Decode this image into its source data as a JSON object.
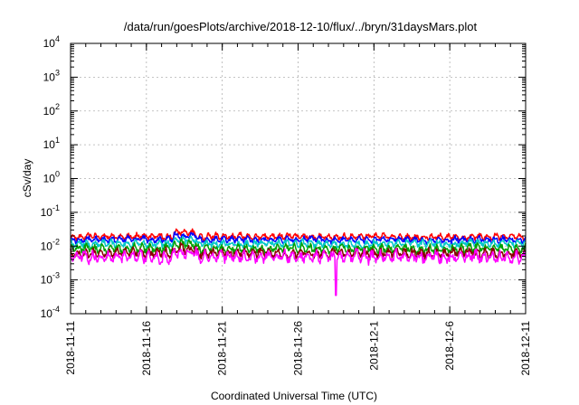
{
  "chart_data": {
    "type": "line",
    "title": "/data/run/goesPlots/archive/2018-12-10/flux/../bryn/31daysMars.plot",
    "xlabel": "Coordinated Universal Time (UTC)",
    "ylabel": "cSv/day",
    "x_tick_labels": [
      "2018-11-11",
      "2018-11-16",
      "2018-11-21",
      "2018-11-26",
      "2018-12-1",
      "2018-12-6",
      "2018-12-11"
    ],
    "x_range": [
      "2018-11-11",
      "2018-12-11"
    ],
    "y_scale": "log",
    "ylim": [
      0.0001,
      10000
    ],
    "y_ticks": [
      {
        "base": "10",
        "exp": "-4"
      },
      {
        "base": "10",
        "exp": "-3"
      },
      {
        "base": "10",
        "exp": "-2"
      },
      {
        "base": "10",
        "exp": "-1"
      },
      {
        "base": "10",
        "exp": "0"
      },
      {
        "base": "10",
        "exp": "1"
      },
      {
        "base": "10",
        "exp": "2"
      },
      {
        "base": "10",
        "exp": "3"
      },
      {
        "base": "10",
        "exp": "4"
      }
    ],
    "grid": true,
    "series": [
      {
        "color": "#ff0000",
        "typical_value": 0.019,
        "variability": 0.13,
        "seed": 11
      },
      {
        "color": "#0000ff",
        "typical_value": 0.0155,
        "variability": 0.13,
        "seed": 23
      },
      {
        "color": "#00c8c8",
        "typical_value": 0.0118,
        "variability": 0.15,
        "seed": 37
      },
      {
        "color": "#00a000",
        "typical_value": 0.0085,
        "variability": 0.18,
        "seed": 41
      },
      {
        "color": "#8b0000",
        "typical_value": 0.0062,
        "variability": 0.2,
        "seed": 53
      },
      {
        "color": "#ff00ff",
        "typical_value": 0.0048,
        "variability": 0.24,
        "seed": 67
      }
    ],
    "notable_dip": {
      "date": "2018-11-28",
      "value": 0.00035
    }
  }
}
